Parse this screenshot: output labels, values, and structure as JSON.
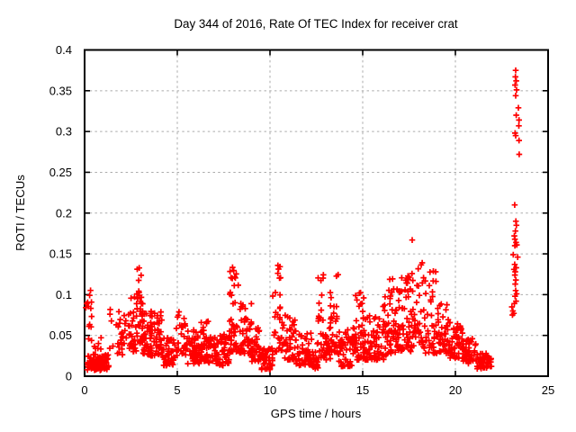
{
  "page": {
    "background": "#ffffff"
  },
  "chart_data": {
    "type": "scatter",
    "title": "Day 344 of 2016, Rate Of TEC Index for receiver crat",
    "xlabel": "GPS time / hours",
    "ylabel": "ROTI / TECUs",
    "xlim": [
      0,
      25
    ],
    "ylim": [
      0,
      0.4
    ],
    "xticks": {
      "values": [
        0,
        5,
        10,
        15,
        20,
        25
      ],
      "labels": [
        "0",
        "5",
        "10",
        "15",
        "20",
        "25"
      ]
    },
    "yticks": {
      "values": [
        0,
        0.05,
        0.1,
        0.15,
        0.2,
        0.25,
        0.3,
        0.35,
        0.4
      ],
      "labels": [
        "0",
        "0.05",
        "0.1",
        "0.15",
        "0.2",
        "0.25",
        "0.3",
        "0.35",
        "0.4"
      ]
    },
    "grid": {
      "on": true,
      "style": "dashed",
      "color": "#ababab",
      "x_values": [
        5,
        10,
        15,
        20
      ],
      "y_values": [
        0.05,
        0.1,
        0.15,
        0.2,
        0.25,
        0.3,
        0.35
      ]
    },
    "legend": "none",
    "marker": {
      "shape": "plus",
      "color": "#ff0000",
      "size": 7
    },
    "series_name": "ROTI",
    "seed": 344,
    "point_clusters": [
      {
        "x": [
          0.05,
          0.4
        ],
        "y": [
          0.028,
          0.106
        ],
        "n": 14,
        "bias": 1.0
      },
      {
        "x": [
          0.15,
          1.3
        ],
        "y": [
          0.007,
          0.027
        ],
        "n": 95,
        "bias": 1.0
      },
      {
        "x": [
          0.45,
          0.95
        ],
        "y": [
          0.03,
          0.052
        ],
        "n": 6,
        "bias": 1.0
      },
      {
        "x": [
          1.3,
          2.4
        ],
        "y": [
          0.025,
          0.082
        ],
        "n": 32,
        "bias": 1.4
      },
      {
        "x": [
          2.4,
          2.85
        ],
        "y": [
          0.03,
          0.1
        ],
        "n": 30,
        "bias": 1.5
      },
      {
        "x": [
          2.8,
          3.15
        ],
        "y": [
          0.04,
          0.138
        ],
        "n": 40,
        "bias": 1.3
      },
      {
        "x": [
          3.1,
          4.2
        ],
        "y": [
          0.025,
          0.08
        ],
        "n": 90,
        "bias": 1.8
      },
      {
        "x": [
          4.2,
          4.95
        ],
        "y": [
          0.013,
          0.048
        ],
        "n": 45,
        "bias": 1.3
      },
      {
        "x": [
          4.95,
          5.45
        ],
        "y": [
          0.025,
          0.08
        ],
        "n": 30,
        "bias": 1.7
      },
      {
        "x": [
          5.45,
          6.2
        ],
        "y": [
          0.015,
          0.058
        ],
        "n": 55,
        "bias": 1.5
      },
      {
        "x": [
          6.2,
          6.7
        ],
        "y": [
          0.018,
          0.068
        ],
        "n": 45,
        "bias": 1.5
      },
      {
        "x": [
          6.7,
          7.8
        ],
        "y": [
          0.013,
          0.052
        ],
        "n": 70,
        "bias": 1.5
      },
      {
        "x": [
          7.8,
          8.35
        ],
        "y": [
          0.03,
          0.137
        ],
        "n": 48,
        "bias": 2.1
      },
      {
        "x": [
          8.35,
          9.0
        ],
        "y": [
          0.028,
          0.09
        ],
        "n": 55,
        "bias": 1.6
      },
      {
        "x": [
          9.0,
          9.5
        ],
        "y": [
          0.018,
          0.06
        ],
        "n": 35,
        "bias": 1.5
      },
      {
        "x": [
          9.5,
          10.15
        ],
        "y": [
          0.008,
          0.035
        ],
        "n": 48,
        "bias": 1.2
      },
      {
        "x": [
          10.15,
          10.6
        ],
        "y": [
          0.03,
          0.138
        ],
        "n": 28,
        "bias": 2.1
      },
      {
        "x": [
          10.6,
          11.4
        ],
        "y": [
          0.02,
          0.078
        ],
        "n": 48,
        "bias": 1.7
      },
      {
        "x": [
          11.4,
          12.3
        ],
        "y": [
          0.013,
          0.055
        ],
        "n": 52,
        "bias": 1.5
      },
      {
        "x": [
          12.3,
          12.6
        ],
        "y": [
          0.008,
          0.03
        ],
        "n": 20,
        "bias": 1.2
      },
      {
        "x": [
          12.55,
          13.0
        ],
        "y": [
          0.022,
          0.14
        ],
        "n": 32,
        "bias": 1.9
      },
      {
        "x": [
          13.0,
          13.3
        ],
        "y": [
          0.02,
          0.062
        ],
        "n": 22,
        "bias": 1.4
      },
      {
        "x": [
          13.25,
          13.7
        ],
        "y": [
          0.028,
          0.126
        ],
        "n": 32,
        "bias": 1.8
      },
      {
        "x": [
          13.7,
          14.6
        ],
        "y": [
          0.012,
          0.06
        ],
        "n": 62,
        "bias": 1.6
      },
      {
        "x": [
          14.6,
          15.1
        ],
        "y": [
          0.02,
          0.11
        ],
        "n": 42,
        "bias": 1.9
      },
      {
        "x": [
          15.1,
          16.2
        ],
        "y": [
          0.02,
          0.092
        ],
        "n": 72,
        "bias": 1.9
      },
      {
        "x": [
          16.2,
          17.0
        ],
        "y": [
          0.025,
          0.12
        ],
        "n": 62,
        "bias": 1.8
      },
      {
        "x": [
          17.0,
          17.6
        ],
        "y": [
          0.03,
          0.132
        ],
        "n": 48,
        "bias": 1.7
      },
      {
        "x": [
          17.6,
          18.3
        ],
        "y": [
          0.035,
          0.142
        ],
        "n": 48,
        "bias": 1.5
      },
      {
        "x": [
          18.3,
          19.0
        ],
        "y": [
          0.028,
          0.135
        ],
        "n": 42,
        "bias": 1.9
      },
      {
        "x": [
          19.0,
          19.7
        ],
        "y": [
          0.028,
          0.09
        ],
        "n": 46,
        "bias": 1.4
      },
      {
        "x": [
          19.7,
          20.4
        ],
        "y": [
          0.022,
          0.066
        ],
        "n": 46,
        "bias": 1.3
      },
      {
        "x": [
          20.4,
          21.1
        ],
        "y": [
          0.015,
          0.046
        ],
        "n": 46,
        "bias": 1.2
      },
      {
        "x": [
          21.1,
          21.95
        ],
        "y": [
          0.009,
          0.028
        ],
        "n": 46,
        "bias": 1.1
      }
    ],
    "outlier_points": [
      [
        17.67,
        0.167
      ],
      [
        23.25,
        0.375
      ],
      [
        23.24,
        0.367
      ],
      [
        23.28,
        0.362
      ],
      [
        23.22,
        0.357
      ],
      [
        23.3,
        0.351
      ],
      [
        23.25,
        0.344
      ],
      [
        23.4,
        0.329
      ],
      [
        23.28,
        0.32
      ],
      [
        23.43,
        0.314
      ],
      [
        23.42,
        0.307
      ],
      [
        23.22,
        0.298
      ],
      [
        23.25,
        0.295
      ],
      [
        23.43,
        0.289
      ],
      [
        23.44,
        0.272
      ],
      [
        23.2,
        0.21
      ],
      [
        23.26,
        0.19
      ],
      [
        23.29,
        0.185
      ],
      [
        23.24,
        0.178
      ],
      [
        23.18,
        0.172
      ],
      [
        23.21,
        0.168
      ],
      [
        23.27,
        0.164
      ],
      [
        23.31,
        0.161
      ],
      [
        23.21,
        0.16
      ],
      [
        23.12,
        0.149
      ],
      [
        23.36,
        0.146
      ],
      [
        23.2,
        0.137
      ],
      [
        23.28,
        0.133
      ],
      [
        23.16,
        0.131
      ],
      [
        23.23,
        0.128
      ],
      [
        23.21,
        0.124
      ],
      [
        23.26,
        0.118
      ],
      [
        23.23,
        0.113
      ],
      [
        23.25,
        0.105
      ],
      [
        23.3,
        0.101
      ],
      [
        23.22,
        0.098
      ],
      [
        23.27,
        0.092
      ],
      [
        23.18,
        0.089
      ],
      [
        23.05,
        0.085
      ],
      [
        23.1,
        0.08
      ],
      [
        23.15,
        0.077
      ],
      [
        23.08,
        0.075
      ]
    ]
  }
}
